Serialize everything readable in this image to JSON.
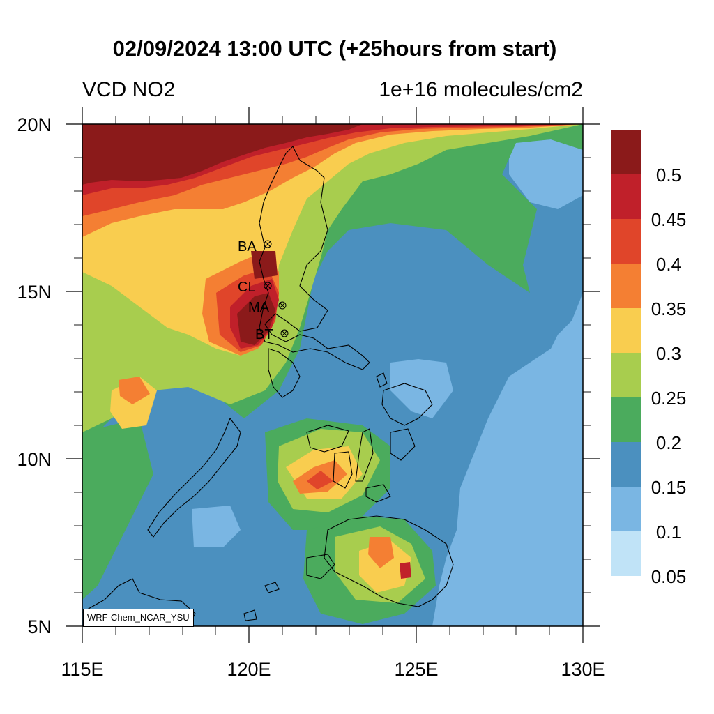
{
  "header": {
    "title": "02/09/2024 13:00 UTC (+25hours from start)",
    "left_label": "VCD NO2",
    "right_label": "1e+16 molecules/cm2"
  },
  "axes": {
    "x_ticks": [
      "115E",
      "120E",
      "125E",
      "130E"
    ],
    "y_ticks": [
      "20N",
      "15N",
      "10N",
      "5N"
    ],
    "lon_range": [
      115,
      130
    ],
    "lat_range": [
      5,
      20
    ]
  },
  "colorbar": {
    "labels": [
      "0.5",
      "0.45",
      "0.4",
      "0.35",
      "0.3",
      "0.25",
      "0.2",
      "0.15",
      "0.1",
      "0.05"
    ],
    "colors": [
      "#8b1a1a",
      "#c0202a",
      "#e0452a",
      "#f47f33",
      "#f9cd4f",
      "#a8cd4e",
      "#4bab5d",
      "#4b90bf",
      "#7ab6e3",
      "#c0e3f7"
    ]
  },
  "stations": [
    {
      "code": "BA",
      "lon": 120.5,
      "lat": 16.45
    },
    {
      "code": "CL",
      "lon": 120.5,
      "lat": 15.2
    },
    {
      "code": "MA",
      "lon": 121.0,
      "lat": 14.6
    },
    {
      "code": "BT",
      "lon": 121.0,
      "lat": 13.75
    }
  ],
  "credit": "WRF-Chem_NCAR_YSU"
}
